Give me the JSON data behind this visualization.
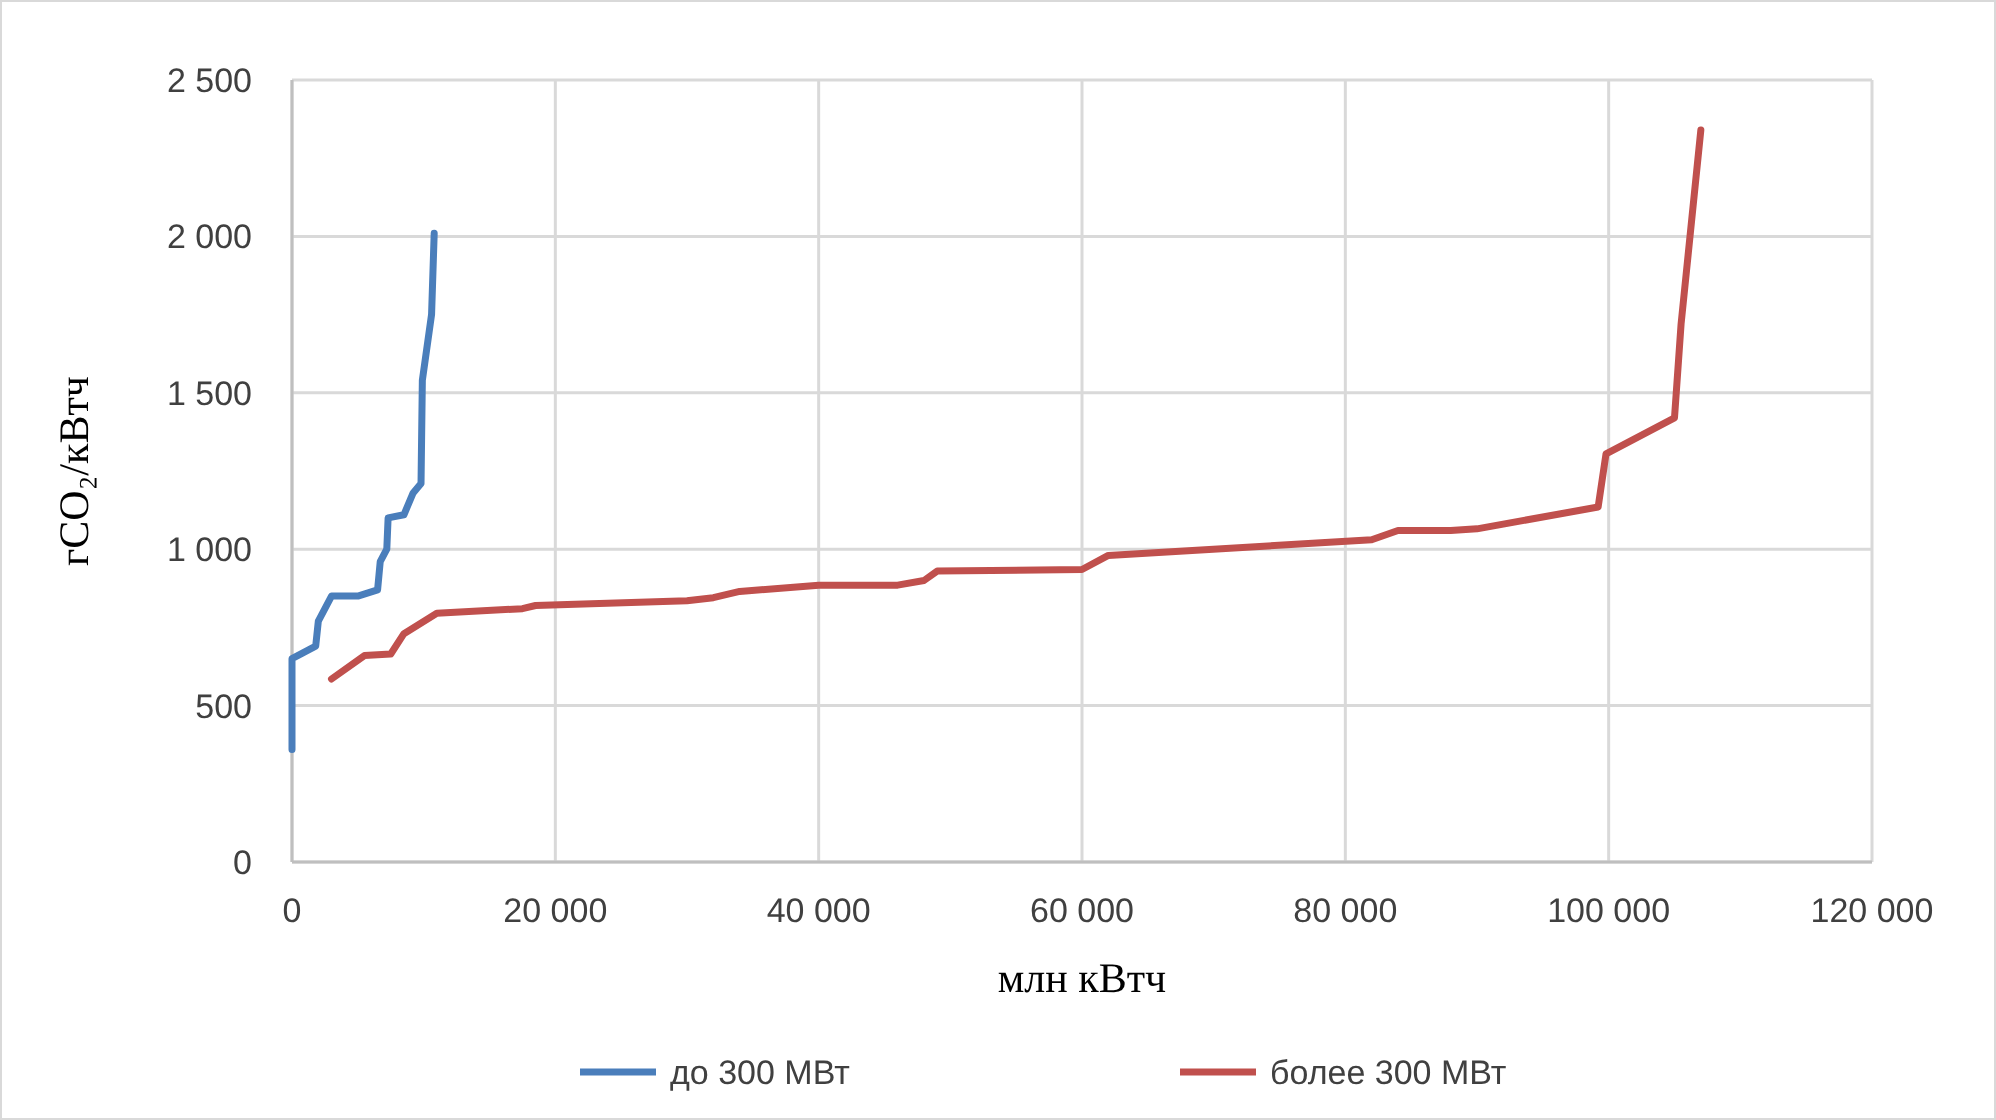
{
  "chart_data": {
    "type": "line",
    "xlabel": "млн кВтч",
    "ylabel": "гCO₂/кВтч",
    "xlim": [
      0,
      120000
    ],
    "ylim": [
      0,
      2500
    ],
    "xticks": [
      0,
      {
        "value": 20000,
        "label": "20 000"
      },
      {
        "value": 40000,
        "label": "40 000"
      },
      {
        "value": 60000,
        "label": "60 000"
      },
      {
        "value": 80000,
        "label": "80 000"
      },
      {
        "value": 100000,
        "label": "100 000"
      },
      {
        "value": 120000,
        "label": "120 000"
      }
    ],
    "yticks": [
      0,
      500,
      {
        "value": 1000,
        "label": "1 000"
      },
      {
        "value": 1500,
        "label": "1 500"
      },
      {
        "value": 2000,
        "label": "2 000"
      },
      {
        "value": 2500,
        "label": "2 500"
      }
    ],
    "grid": true,
    "legend": "bottom",
    "marker": "none",
    "line_style": "solid",
    "series": [
      {
        "name": "до 300 МВт",
        "color": "#4a7ebb",
        "x": [
          0,
          0,
          1800,
          2000,
          3000,
          5000,
          6500,
          6700,
          7200,
          7300,
          8500,
          9200,
          9800,
          9900,
          10600,
          10800
        ],
        "values": [
          360,
          650,
          690,
          770,
          850,
          850,
          870,
          960,
          1000,
          1100,
          1110,
          1180,
          1210,
          1540,
          1750,
          2010
        ]
      },
      {
        "name": "более 300 МВт",
        "color": "#c0504d",
        "x": [
          3000,
          5500,
          7500,
          8500,
          11000,
          17500,
          18500,
          30000,
          32000,
          34000,
          40000,
          46000,
          48000,
          49000,
          60000,
          62000,
          82000,
          84000,
          88000,
          90000,
          99200,
          99800,
          105000,
          105500,
          107000
        ],
        "values": [
          585,
          660,
          665,
          730,
          795,
          810,
          820,
          835,
          845,
          865,
          885,
          885,
          900,
          930,
          935,
          980,
          1030,
          1060,
          1060,
          1065,
          1135,
          1305,
          1420,
          1720,
          2340
        ]
      }
    ]
  }
}
